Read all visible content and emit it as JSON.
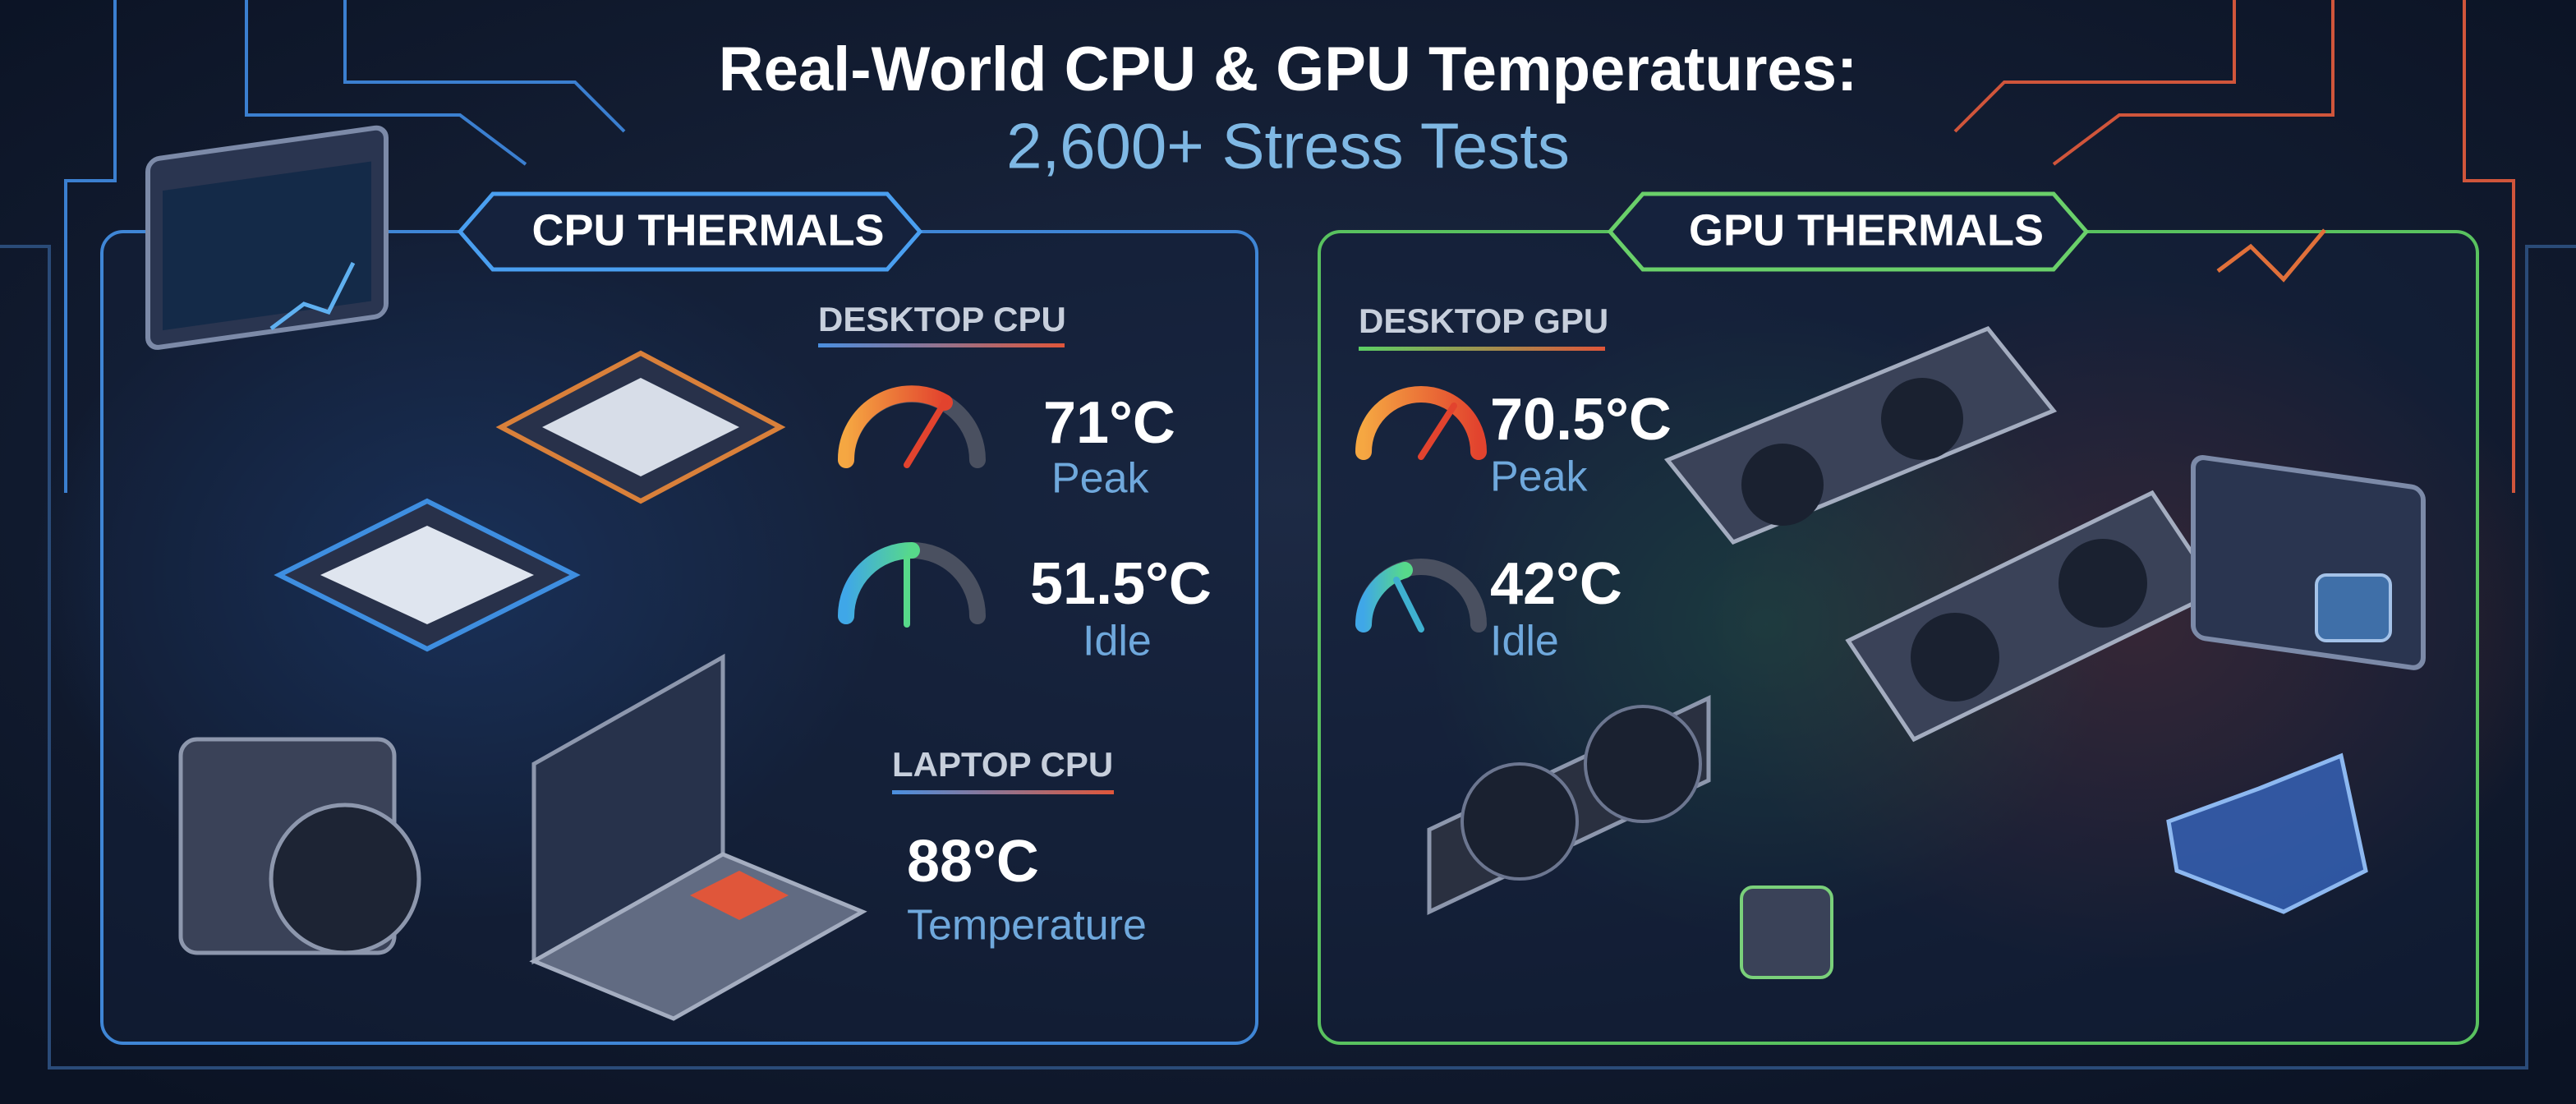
{
  "header": {
    "title": "Real-World CPU & GPU Temperatures:",
    "subtitle": "2,600+ Stress Tests"
  },
  "panels": [
    {
      "heading": "CPU THERMALS",
      "sections": [
        {
          "label": "DESKTOP CPU",
          "stats": [
            {
              "value": "71°C",
              "label": "Peak"
            },
            {
              "value": "51.5°C",
              "label": "Idle"
            }
          ]
        },
        {
          "label": "LAPTOP CPU",
          "stats": [
            {
              "value": "88°C",
              "label": "Temperature"
            }
          ]
        }
      ]
    },
    {
      "heading": "GPU THERMALS",
      "sections": [
        {
          "label": "DESKTOP GPU",
          "stats": [
            {
              "value": "70.5°C",
              "label": "Peak"
            },
            {
              "value": "42°C",
              "label": "Idle"
            }
          ]
        }
      ]
    }
  ]
}
